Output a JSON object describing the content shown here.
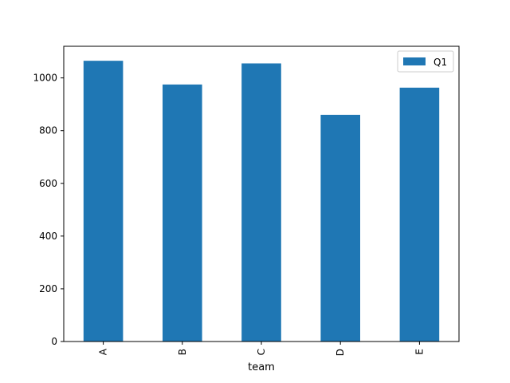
{
  "chart_data": {
    "type": "bar",
    "title": "",
    "xlabel": "team",
    "ylabel": "",
    "categories": [
      "A",
      "B",
      "C",
      "D",
      "E"
    ],
    "series": [
      {
        "name": "Q1",
        "values": [
          1065,
          975,
          1055,
          860,
          963
        ],
        "color": "#1f77b4"
      }
    ],
    "ylim": [
      0,
      1120
    ],
    "yticks": [
      0,
      200,
      400,
      600,
      800,
      1000
    ],
    "grid": false,
    "legend": {
      "position": "top-right"
    }
  }
}
